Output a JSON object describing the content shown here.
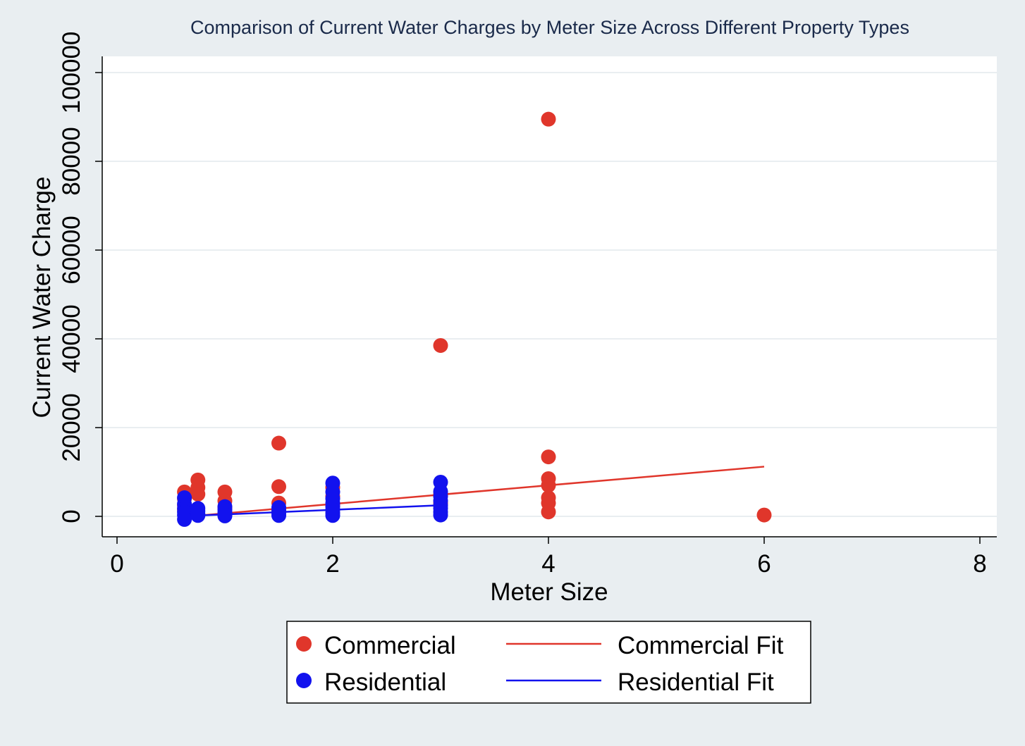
{
  "chart_data": {
    "type": "scatter",
    "title": "Comparison of Current Water Charges by Meter Size Across Different Property Types",
    "xlabel": "Meter Size",
    "ylabel": "Current Water Charge",
    "xlim": [
      0,
      8
    ],
    "ylim": [
      0,
      100000
    ],
    "x_ticks": [
      "0",
      "2",
      "4",
      "6",
      "8"
    ],
    "y_ticks": [
      "0",
      "20000",
      "40000",
      "60000",
      "80000",
      "100000"
    ],
    "grid": "horizontal",
    "legend_position": "bottom",
    "colors": {
      "commercial": "#e0362b",
      "residential": "#1212ee",
      "background": "#e9eef1",
      "plot_background": "#ffffff",
      "gridline": "#e9eef1"
    },
    "series": [
      {
        "name": "Commercial",
        "kind": "points",
        "points": [
          [
            0.625,
            5500
          ],
          [
            0.625,
            4000
          ],
          [
            0.625,
            2500
          ],
          [
            0.625,
            1500
          ],
          [
            0.75,
            8200
          ],
          [
            0.75,
            6500
          ],
          [
            0.75,
            5000
          ],
          [
            1,
            5500
          ],
          [
            1,
            3500
          ],
          [
            1,
            2000
          ],
          [
            1.5,
            16500
          ],
          [
            1.5,
            6700
          ],
          [
            1.5,
            3000
          ],
          [
            1.5,
            1500
          ],
          [
            2,
            6500
          ],
          [
            2,
            4500
          ],
          [
            2,
            2500
          ],
          [
            3,
            38500
          ],
          [
            3,
            5000
          ],
          [
            3,
            3000
          ],
          [
            4,
            89500
          ],
          [
            4,
            13400
          ],
          [
            4,
            8500
          ],
          [
            4,
            7000
          ],
          [
            4,
            4200
          ],
          [
            4,
            3000
          ],
          [
            4,
            1000
          ],
          [
            6,
            300
          ]
        ]
      },
      {
        "name": "Residential",
        "kind": "points",
        "points": [
          [
            0.625,
            4200
          ],
          [
            0.625,
            2800
          ],
          [
            0.625,
            1800
          ],
          [
            0.625,
            1000
          ],
          [
            0.625,
            300
          ],
          [
            0.625,
            -700
          ],
          [
            0.75,
            1800
          ],
          [
            0.75,
            1200
          ],
          [
            0.75,
            600
          ],
          [
            0.75,
            200
          ],
          [
            1,
            2200
          ],
          [
            1,
            1500
          ],
          [
            1,
            900
          ],
          [
            1,
            400
          ],
          [
            1,
            100
          ],
          [
            1.5,
            2000
          ],
          [
            1.5,
            1300
          ],
          [
            1.5,
            700
          ],
          [
            1.5,
            200
          ],
          [
            2,
            7500
          ],
          [
            2,
            5500
          ],
          [
            2,
            4000
          ],
          [
            2,
            3000
          ],
          [
            2,
            2200
          ],
          [
            2,
            1500
          ],
          [
            2,
            800
          ],
          [
            2,
            200
          ],
          [
            3,
            7700
          ],
          [
            3,
            5600
          ],
          [
            3,
            4500
          ],
          [
            3,
            3500
          ],
          [
            3,
            2500
          ],
          [
            3,
            1800
          ],
          [
            3,
            1000
          ],
          [
            3,
            300
          ]
        ]
      },
      {
        "name": "Commercial Fit",
        "kind": "line",
        "points": [
          [
            0.625,
            -100
          ],
          [
            6,
            11200
          ]
        ]
      },
      {
        "name": "Residential Fit",
        "kind": "line",
        "points": [
          [
            0.625,
            50
          ],
          [
            3,
            2500
          ]
        ]
      }
    ]
  }
}
